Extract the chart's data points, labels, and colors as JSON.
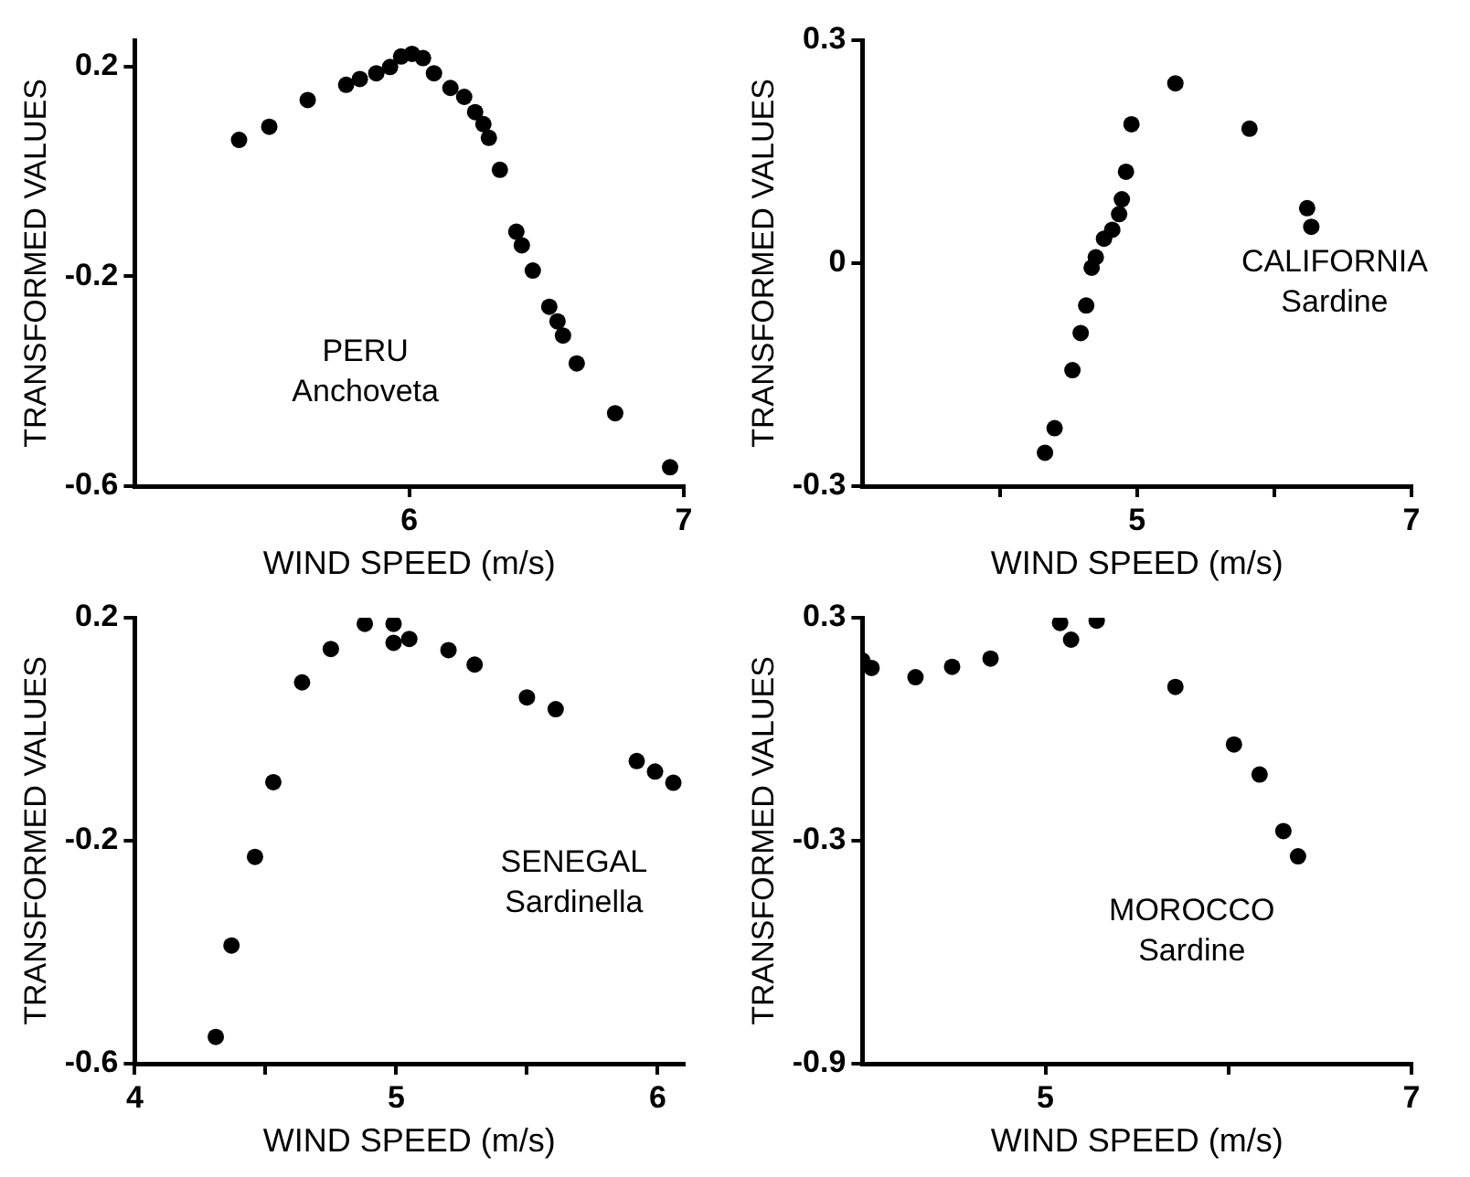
{
  "chart_data": [
    {
      "type": "scatter",
      "xlabel": "WIND SPEED (m/s)",
      "ylabel": "TRANSFORMED VALUES",
      "annotations": [
        "PERU",
        "Anchoveta"
      ],
      "color": "#000000",
      "marker": "circle",
      "xlim": [
        5,
        7
      ],
      "xticks": [
        6,
        7
      ],
      "ylim": [
        -0.6,
        0.25
      ],
      "yticks": [
        -0.6,
        -0.2,
        0.2
      ],
      "x": [
        5.38,
        5.49,
        5.63,
        5.77,
        5.82,
        5.88,
        5.93,
        5.97,
        6.01,
        6.05,
        6.09,
        6.15,
        6.2,
        6.24,
        6.27,
        6.29,
        6.33,
        6.39,
        6.41,
        6.45,
        6.51,
        6.54,
        6.56,
        6.61,
        6.75,
        6.95
      ],
      "values": [
        0.06,
        0.085,
        0.136,
        0.165,
        0.176,
        0.187,
        0.199,
        0.219,
        0.224,
        0.216,
        0.187,
        0.159,
        0.142,
        0.113,
        0.09,
        0.064,
        0.003,
        -0.115,
        -0.141,
        -0.189,
        -0.258,
        -0.286,
        -0.313,
        -0.366,
        -0.461,
        -0.564
      ]
    },
    {
      "type": "scatter",
      "xlabel": "WIND SPEED (m/s)",
      "ylabel": "TRANSFORMED VALUES",
      "annotations": [
        "CALIFORNIA",
        "Sardine"
      ],
      "color": "#000000",
      "marker": "circle",
      "xlim": [
        3,
        7
      ],
      "xticks": [
        {
          "value": 4,
          "label": null
        },
        5,
        {
          "value": 6,
          "label": null
        },
        7
      ],
      "ylim": [
        -0.3,
        0.3
      ],
      "yticks": [
        -0.3,
        0,
        0.3
      ],
      "x": [
        5.28,
        5.82,
        4.96,
        4.92,
        4.89,
        4.87,
        4.82,
        4.76,
        4.7,
        4.67,
        4.63,
        4.59,
        4.53,
        4.4,
        4.33,
        6.24,
        6.27
      ],
      "values": [
        0.242,
        0.181,
        0.187,
        0.123,
        0.086,
        0.066,
        0.045,
        0.033,
        0.008,
        -0.006,
        -0.057,
        -0.094,
        -0.144,
        -0.222,
        -0.255,
        0.074,
        0.049
      ]
    },
    {
      "type": "scatter",
      "xlabel": "WIND SPEED (m/s)",
      "ylabel": "TRANSFORMED VALUES",
      "annotations": [
        "SENEGAL",
        "Sardinella"
      ],
      "color": "#000000",
      "marker": "circle",
      "xlim": [
        4,
        6.1
      ],
      "xticks": [
        4,
        {
          "value": 4.5,
          "label": null
        },
        5,
        {
          "value": 5.5,
          "label": null
        },
        6
      ],
      "ylim": [
        -0.6,
        0.2
      ],
      "yticks": [
        -0.6,
        -0.2,
        0.2
      ],
      "x": [
        4.31,
        4.37,
        4.46,
        4.53,
        4.64,
        4.75,
        4.88,
        4.99,
        4.99,
        5.05,
        5.2,
        5.3,
        5.5,
        5.61,
        5.92,
        5.99,
        6.06
      ],
      "values": [
        -0.552,
        -0.388,
        -0.229,
        -0.095,
        0.084,
        0.144,
        0.189,
        0.189,
        0.155,
        0.162,
        0.142,
        0.116,
        0.057,
        0.036,
        -0.057,
        -0.076,
        -0.096
      ]
    },
    {
      "type": "scatter",
      "xlabel": "WIND SPEED (m/s)",
      "ylabel": "TRANSFORMED VALUES",
      "annotations": [
        "MOROCCO",
        "Sardine"
      ],
      "color": "#000000",
      "marker": "circle",
      "xlim": [
        4,
        7
      ],
      "xticks": [
        5,
        {
          "value": 6,
          "label": null
        },
        7
      ],
      "ylim": [
        -0.9,
        0.3
      ],
      "yticks": [
        -0.9,
        -0.3,
        0.3
      ],
      "x": [
        4.0,
        4.05,
        4.29,
        4.49,
        4.7,
        5.08,
        5.14,
        5.28,
        5.71,
        6.03,
        6.17,
        6.3,
        6.38
      ],
      "values": [
        0.185,
        0.165,
        0.14,
        0.168,
        0.19,
        0.286,
        0.241,
        0.292,
        0.114,
        -0.041,
        -0.122,
        -0.274,
        -0.342
      ]
    }
  ]
}
